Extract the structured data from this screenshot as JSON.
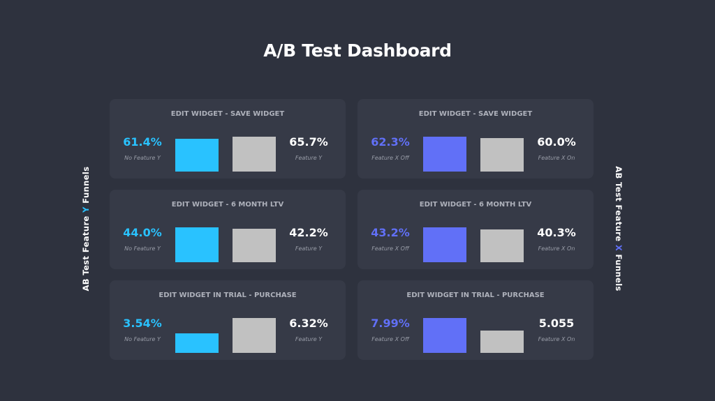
{
  "title": "A/B Test Dashboard",
  "side_left": {
    "pre": "AB Test Feature ",
    "accent": "Y",
    "post": " Funnels"
  },
  "side_right": {
    "pre": "AB Test Feature ",
    "accent": "X",
    "post": " Funnels"
  },
  "colors": {
    "feature_y_accent": "#29c2ff",
    "feature_x_accent": "#6170f7",
    "treatment_bar": "#c1c1c1",
    "background": "#2e323e",
    "card": "#363a47"
  },
  "chart_data": [
    {
      "type": "bar",
      "title": "EDIT WIDGET - SAVE WIDGET",
      "categories": [
        "No Feature Y",
        "Feature Y"
      ],
      "values": [
        61.4,
        65.7
      ],
      "labels": [
        "61.4%",
        "65.7%"
      ]
    },
    {
      "type": "bar",
      "title": "EDIT WIDGET - SAVE WIDGET",
      "categories": [
        "Feature X Off",
        "Feature X On"
      ],
      "values": [
        62.3,
        60.0
      ],
      "labels": [
        "62.3%",
        "60.0%"
      ]
    },
    {
      "type": "bar",
      "title": "EDIT WIDGET - 6 MONTH LTV",
      "categories": [
        "No Feature Y",
        "Feature Y"
      ],
      "values": [
        44.0,
        42.2
      ],
      "labels": [
        "44.0%",
        "42.2%"
      ]
    },
    {
      "type": "bar",
      "title": "EDIT WIDGET - 6 MONTH LTV",
      "categories": [
        "Feature X Off",
        "Feature X On"
      ],
      "values": [
        43.2,
        40.3
      ],
      "labels": [
        "43.2%",
        "40.3%"
      ]
    },
    {
      "type": "bar",
      "title": "EDIT WIDGET IN TRIAL - PURCHASE",
      "categories": [
        "No Feature Y",
        "Feature Y"
      ],
      "values": [
        3.54,
        6.32
      ],
      "labels": [
        "3.54%",
        "6.32%"
      ]
    },
    {
      "type": "bar",
      "title": "EDIT WIDGET IN TRIAL - PURCHASE",
      "categories": [
        "Feature X Off",
        "Feature X On"
      ],
      "values": [
        7.99,
        5.055
      ],
      "labels": [
        "7.99%",
        "5.055"
      ]
    }
  ]
}
